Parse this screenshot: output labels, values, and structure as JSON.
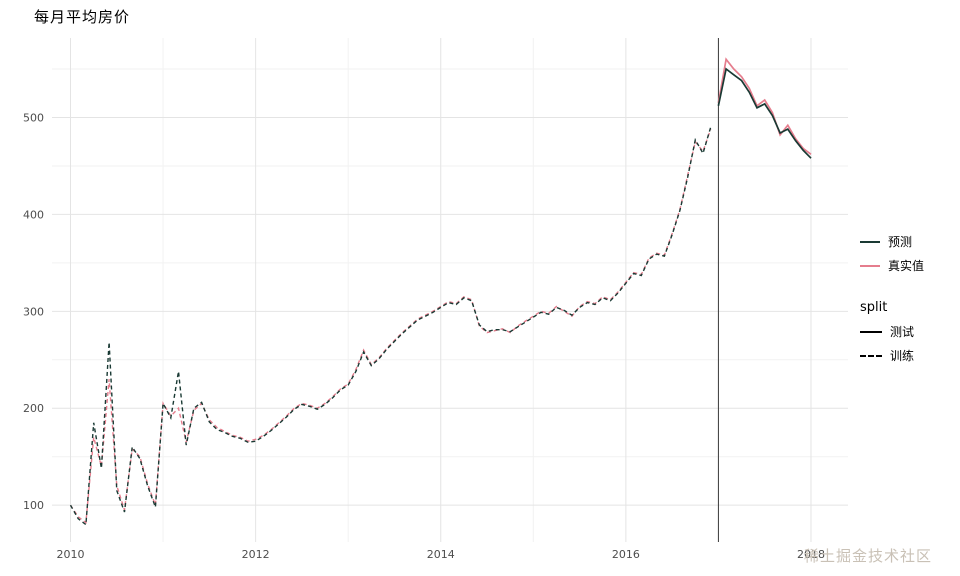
{
  "title": "每月平均房价",
  "watermark": "稀土掘金技术社区",
  "legend": {
    "color": {
      "items": [
        {
          "label": "预测",
          "color": "#1a3a34"
        },
        {
          "label": "真实值",
          "color": "#e57d8d"
        }
      ]
    },
    "split": {
      "title": "split",
      "items": [
        {
          "label": "测试",
          "linetype": "solid"
        },
        {
          "label": "训练",
          "linetype": "dashed"
        }
      ]
    }
  },
  "chart_data": {
    "type": "line",
    "title": "每月平均房价",
    "xlabel": "",
    "ylabel": "",
    "x_start_year": 2010,
    "points_per_year": 12,
    "x_ticks": [
      2010,
      2012,
      2014,
      2016,
      2018
    ],
    "x_minor_ticks": [
      2011,
      2013,
      2015,
      2017
    ],
    "y_ticks": [
      100,
      200,
      300,
      400,
      500
    ],
    "y_minor_ticks": [
      150,
      250,
      350,
      450,
      550
    ],
    "x_domain": [
      2009.8,
      2018.4
    ],
    "y_domain": [
      62,
      582
    ],
    "grid": true,
    "legend_position": "right",
    "split_line_x": 2017.0,
    "split_index": 84,
    "split_labels": {
      "train": "训练",
      "test": "测试"
    },
    "series": [
      {
        "name": "预测",
        "color": "#1a3a34",
        "values": [
          100,
          86,
          80,
          185,
          138,
          268,
          115,
          93,
          160,
          148,
          120,
          98,
          205,
          190,
          238,
          162,
          200,
          206,
          186,
          178,
          175,
          171,
          169,
          165,
          166,
          171,
          177,
          184,
          191,
          199,
          204,
          202,
          199,
          204,
          211,
          219,
          224,
          238,
          258,
          244,
          251,
          261,
          269,
          277,
          284,
          291,
          295,
          299,
          304,
          309,
          307,
          314,
          311,
          286,
          279,
          281,
          281,
          279,
          284,
          289,
          294,
          299,
          297,
          304,
          301,
          296,
          304,
          309,
          307,
          314,
          311,
          319,
          329,
          339,
          337,
          354,
          359,
          357,
          379,
          404,
          438,
          477,
          463,
          490,
          512,
          550,
          544,
          538,
          526,
          510,
          514,
          502,
          484,
          488,
          476,
          466,
          458
        ]
      },
      {
        "name": "真实值",
        "color": "#e57d8d",
        "values": [
          100,
          88,
          82,
          170,
          140,
          230,
          120,
          95,
          158,
          150,
          122,
          100,
          205,
          192,
          200,
          165,
          198,
          205,
          188,
          180,
          176,
          172,
          170,
          166,
          168,
          172,
          178,
          185,
          192,
          200,
          205,
          203,
          200,
          205,
          212,
          220,
          225,
          240,
          260,
          245,
          252,
          262,
          270,
          278,
          285,
          292,
          296,
          300,
          305,
          310,
          308,
          315,
          312,
          285,
          278,
          280,
          282,
          278,
          285,
          290,
          295,
          300,
          298,
          305,
          300,
          295,
          305,
          310,
          308,
          315,
          312,
          320,
          330,
          340,
          338,
          355,
          360,
          358,
          380,
          405,
          440,
          475,
          465,
          488,
          515,
          560,
          550,
          542,
          530,
          512,
          518,
          505,
          482,
          492,
          478,
          468,
          462
        ]
      }
    ],
    "colors": {
      "major_grid": "#e4e4e4",
      "minor_grid": "#f2f2f2",
      "split_line": "#3a3a3a",
      "tick_text": "#4d4d4d"
    }
  }
}
